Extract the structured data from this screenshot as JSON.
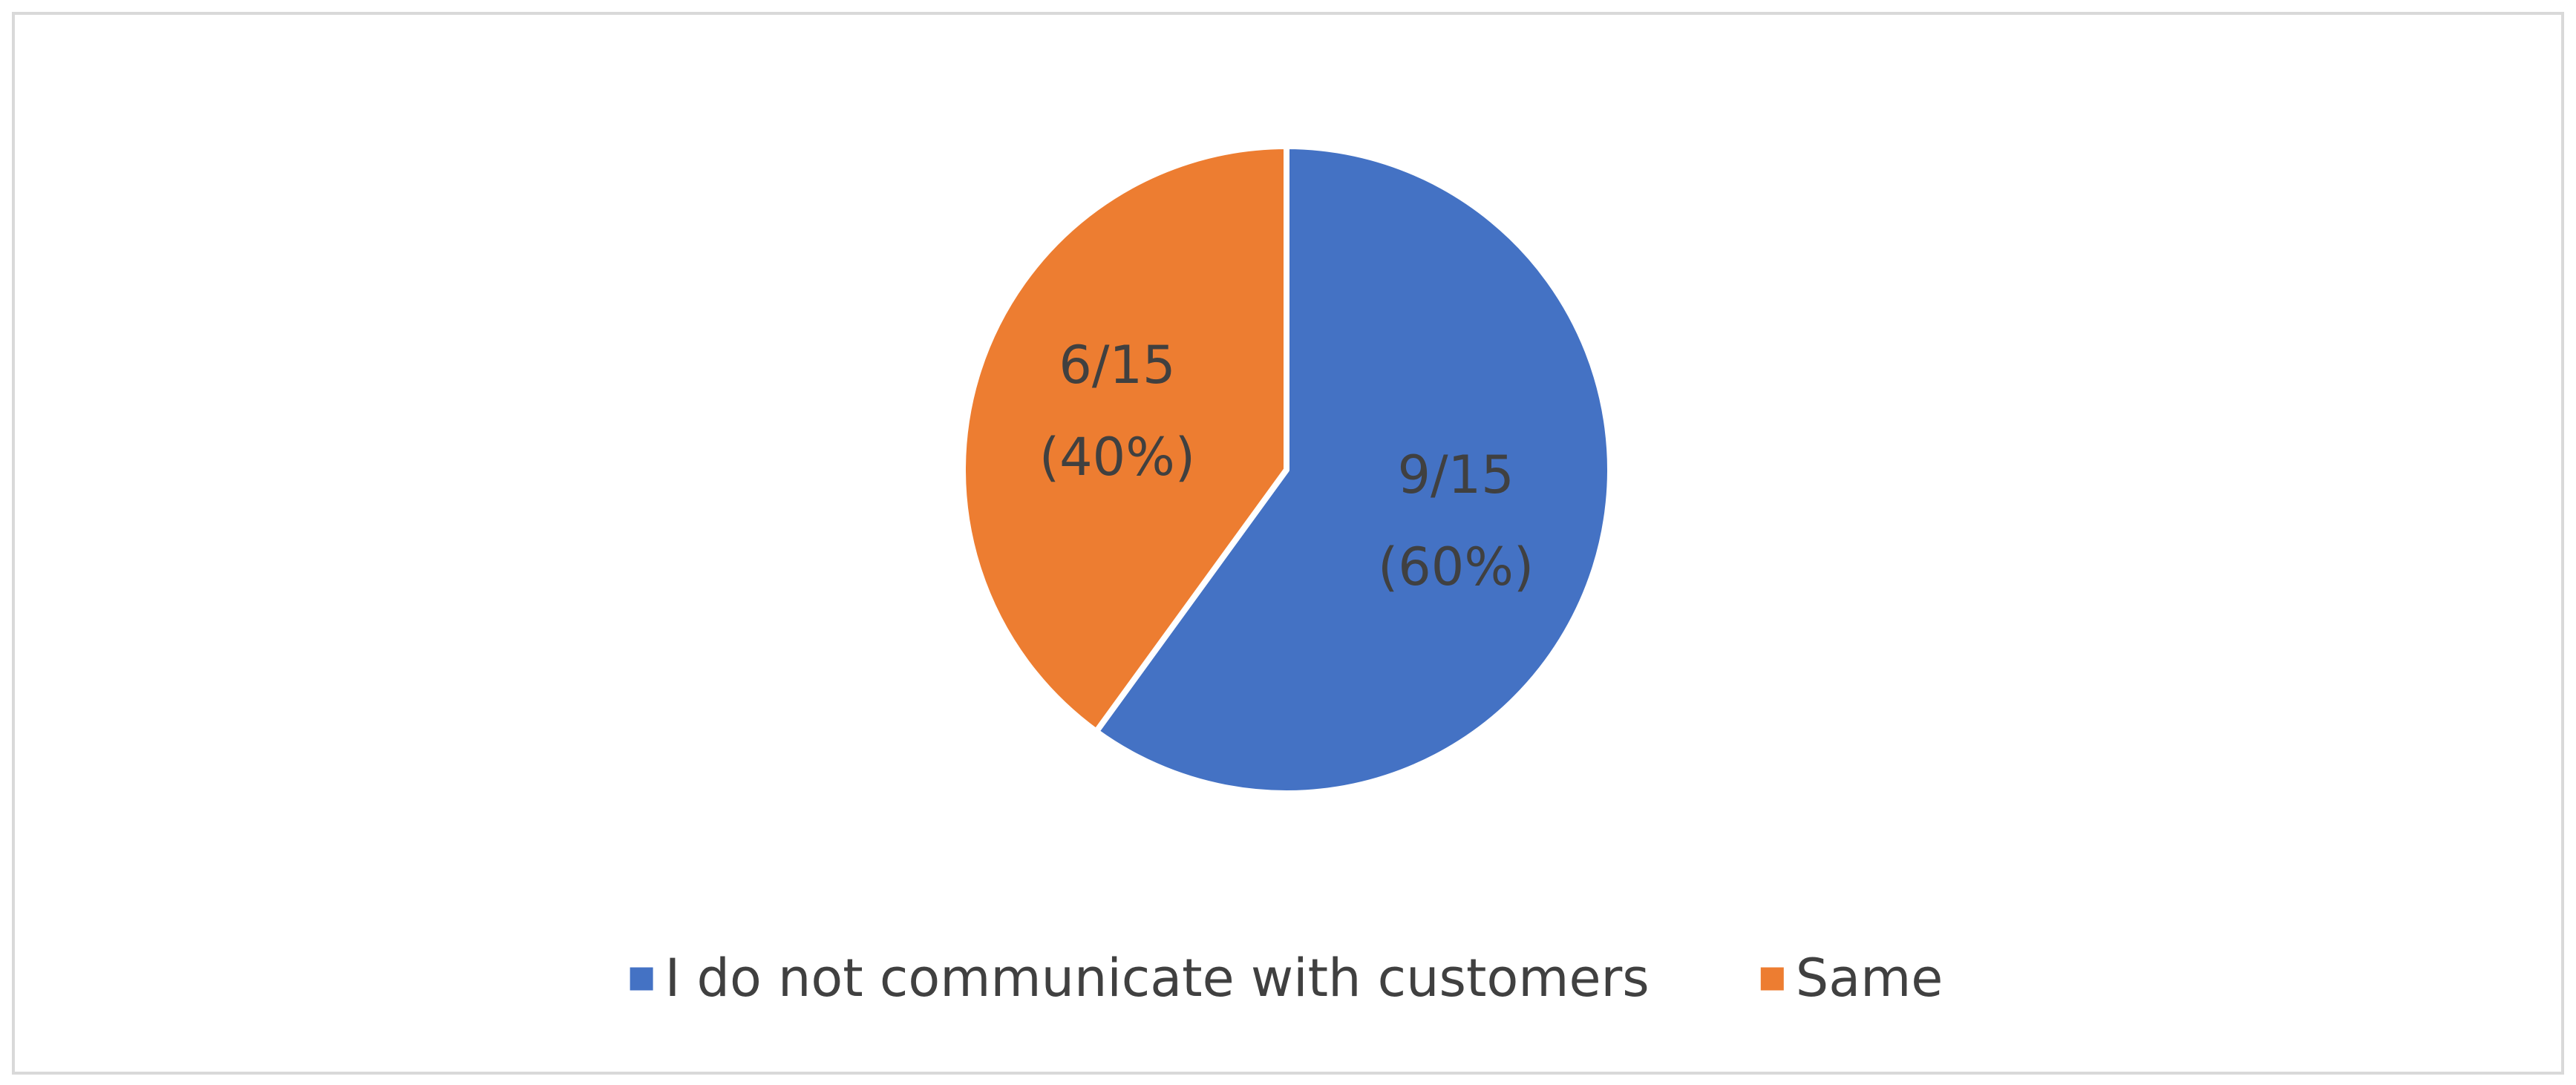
{
  "chart_data": {
    "type": "pie",
    "categories": [
      "I do not communicate with customers",
      "Same"
    ],
    "values": [
      60,
      40
    ],
    "value_labels": [
      [
        "9/15",
        "(60%)"
      ],
      [
        "6/15",
        "(40%)"
      ]
    ],
    "colors": [
      "#4472c4",
      "#ed7d31"
    ],
    "legend": "bottom"
  }
}
